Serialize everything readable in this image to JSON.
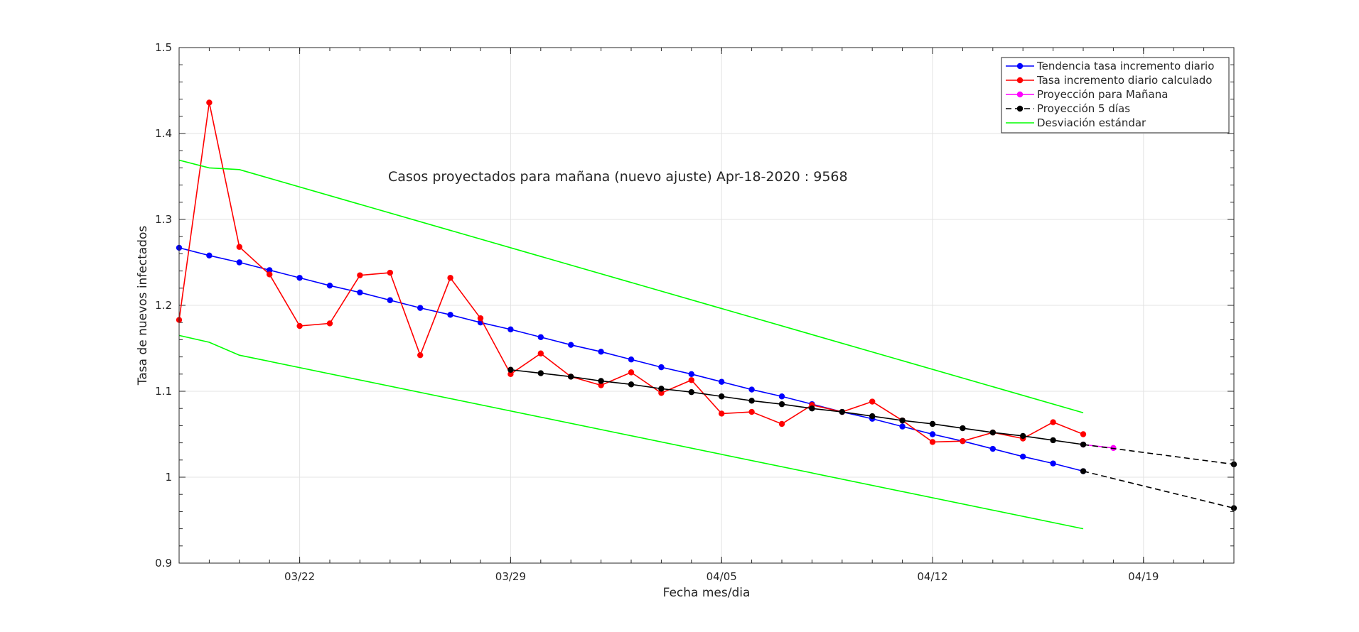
{
  "chart_data": {
    "type": "line",
    "title": "",
    "annotation": "Casos proyectados para mañana (nuevo ajuste) Apr-18-2020 : 9568",
    "xlabel": "Fecha mes/dia",
    "ylabel": "Tasa de nuevos infectados",
    "x_unit": "date (2020)",
    "xlim": [
      "2020-03-18",
      "2020-04-22"
    ],
    "ylim": [
      0.9,
      1.5
    ],
    "x_ticks": [
      {
        "date": "2020-03-22",
        "label": "03/22"
      },
      {
        "date": "2020-03-29",
        "label": "03/29"
      },
      {
        "date": "2020-04-05",
        "label": "04/05"
      },
      {
        "date": "2020-04-12",
        "label": "04/12"
      },
      {
        "date": "2020-04-19",
        "label": "04/19"
      }
    ],
    "y_ticks": [
      {
        "value": 0.9,
        "label": "0.9"
      },
      {
        "value": 1.0,
        "label": "1"
      },
      {
        "value": 1.1,
        "label": "1.1"
      },
      {
        "value": 1.2,
        "label": "1.2"
      },
      {
        "value": 1.3,
        "label": "1.3"
      },
      {
        "value": 1.4,
        "label": "1.4"
      },
      {
        "value": 1.5,
        "label": "1.5"
      }
    ],
    "grid": true,
    "legend_position": "top-right",
    "series": [
      {
        "name": "Tendencia tasa incremento diario",
        "color": "#0000ff",
        "style": "solid",
        "marker": "circle",
        "show_in_legend": true,
        "x": [
          "2020-03-18",
          "2020-03-19",
          "2020-03-20",
          "2020-03-21",
          "2020-03-22",
          "2020-03-23",
          "2020-03-24",
          "2020-03-25",
          "2020-03-26",
          "2020-03-27",
          "2020-03-28",
          "2020-03-29",
          "2020-03-30",
          "2020-03-31",
          "2020-04-01",
          "2020-04-02",
          "2020-04-03",
          "2020-04-04",
          "2020-04-05",
          "2020-04-06",
          "2020-04-07",
          "2020-04-08",
          "2020-04-09",
          "2020-04-10",
          "2020-04-11",
          "2020-04-12",
          "2020-04-13",
          "2020-04-14",
          "2020-04-15",
          "2020-04-16",
          "2020-04-17"
        ],
        "y": [
          1.267,
          1.258,
          1.25,
          1.241,
          1.232,
          1.223,
          1.215,
          1.206,
          1.197,
          1.189,
          1.18,
          1.172,
          1.163,
          1.154,
          1.146,
          1.137,
          1.128,
          1.12,
          1.111,
          1.102,
          1.094,
          1.085,
          1.076,
          1.068,
          1.059,
          1.05,
          1.042,
          1.033,
          1.024,
          1.016,
          1.007
        ]
      },
      {
        "name": "Tasa incremento diario calculado",
        "color": "#ff0000",
        "style": "solid",
        "marker": "circle",
        "show_in_legend": true,
        "x": [
          "2020-03-18",
          "2020-03-19",
          "2020-03-20",
          "2020-03-21",
          "2020-03-22",
          "2020-03-23",
          "2020-03-24",
          "2020-03-25",
          "2020-03-26",
          "2020-03-27",
          "2020-03-28",
          "2020-03-29",
          "2020-03-30",
          "2020-03-31",
          "2020-04-01",
          "2020-04-02",
          "2020-04-03",
          "2020-04-04",
          "2020-04-05",
          "2020-04-06",
          "2020-04-07",
          "2020-04-08",
          "2020-04-09",
          "2020-04-10",
          "2020-04-11",
          "2020-04-12",
          "2020-04-13",
          "2020-04-14",
          "2020-04-15",
          "2020-04-16",
          "2020-04-17"
        ],
        "y": [
          1.183,
          1.436,
          1.268,
          1.236,
          1.176,
          1.179,
          1.235,
          1.238,
          1.142,
          1.232,
          1.185,
          1.12,
          1.144,
          1.117,
          1.107,
          1.122,
          1.098,
          1.113,
          1.074,
          1.076,
          1.062,
          1.084,
          1.076,
          1.088,
          1.066,
          1.041,
          1.042,
          1.052,
          1.045,
          1.064,
          1.05
        ]
      },
      {
        "name": "Proyección para Mañana",
        "color": "#ff00ff",
        "style": "solid",
        "marker": "circle",
        "show_in_legend": true,
        "x": [
          "2020-04-17",
          "2020-04-18"
        ],
        "y": [
          1.038,
          1.034
        ]
      },
      {
        "name": "Proyección 5 días",
        "color": "#000000",
        "style": "dashed",
        "marker": "circle",
        "show_in_legend": true,
        "x": [
          "2020-03-29",
          "2020-03-30",
          "2020-03-31",
          "2020-04-01",
          "2020-04-02",
          "2020-04-03",
          "2020-04-04",
          "2020-04-05",
          "2020-04-06",
          "2020-04-07",
          "2020-04-08",
          "2020-04-09",
          "2020-04-10",
          "2020-04-11",
          "2020-04-12",
          "2020-04-13",
          "2020-04-14",
          "2020-04-15",
          "2020-04-16",
          "2020-04-17",
          "2020-04-22"
        ],
        "y": [
          1.125,
          1.121,
          1.117,
          1.112,
          1.108,
          1.103,
          1.099,
          1.094,
          1.089,
          1.085,
          1.08,
          1.076,
          1.071,
          1.066,
          1.062,
          1.057,
          1.052,
          1.048,
          1.043,
          1.038,
          1.015
        ],
        "solid_until": "2020-04-17"
      },
      {
        "name": "",
        "color": "#000000",
        "style": "dashed",
        "marker": "circle",
        "show_in_legend": false,
        "x": [
          "2020-04-17",
          "2020-04-22"
        ],
        "y": [
          1.007,
          0.964
        ]
      },
      {
        "name": "Desviación estándar",
        "color": "#00ff00",
        "style": "solid",
        "marker": "none",
        "show_in_legend": true,
        "x": [
          "2020-03-18",
          "2020-03-19",
          "2020-03-20",
          "2020-04-17"
        ],
        "y": [
          1.369,
          1.36,
          1.358,
          1.075
        ]
      },
      {
        "name": "",
        "color": "#00ff00",
        "style": "solid",
        "marker": "none",
        "show_in_legend": false,
        "x": [
          "2020-03-18",
          "2020-03-19",
          "2020-03-20",
          "2020-04-17"
        ],
        "y": [
          1.165,
          1.157,
          1.142,
          0.94
        ]
      }
    ]
  }
}
